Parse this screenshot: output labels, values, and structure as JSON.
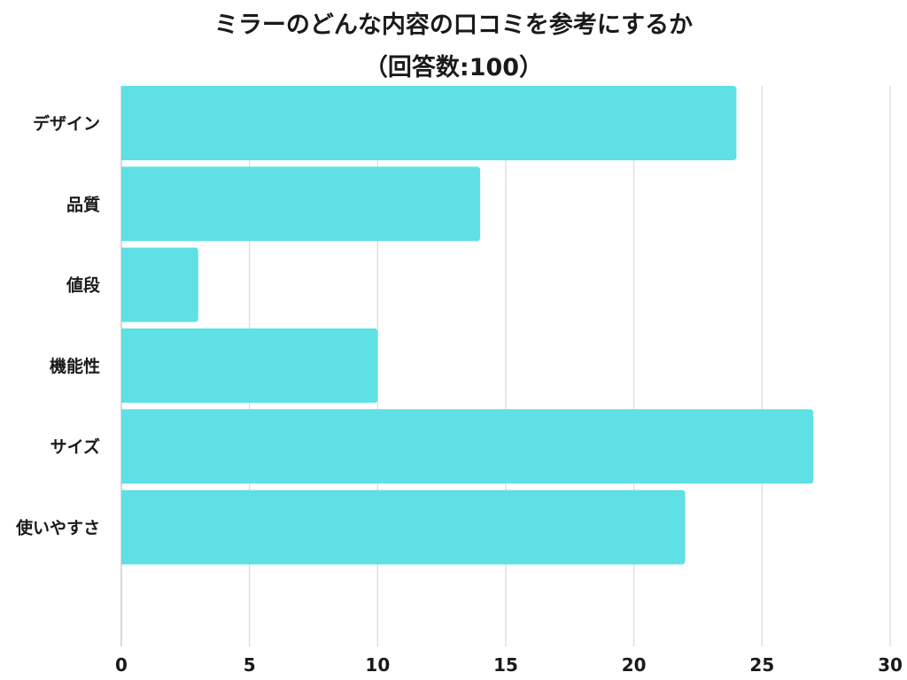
{
  "chart_data": {
    "type": "bar",
    "orientation": "horizontal",
    "title": "ミラーのどんな内容の口コミを参考にするか",
    "subtitle": "（回答数:100）",
    "categories": [
      "デザイン",
      "品質",
      "値段",
      "機能性",
      "サイズ",
      "使いやすさ"
    ],
    "values": [
      24,
      14,
      3,
      10,
      27,
      22
    ],
    "xlim": [
      0,
      30
    ],
    "xticks": [
      "0",
      "5",
      "10",
      "15",
      "20",
      "25",
      "30"
    ],
    "grid": "vertical",
    "legend": "none",
    "bar_color": "#5ee0e4",
    "grid_color": "#d9d9d9"
  }
}
